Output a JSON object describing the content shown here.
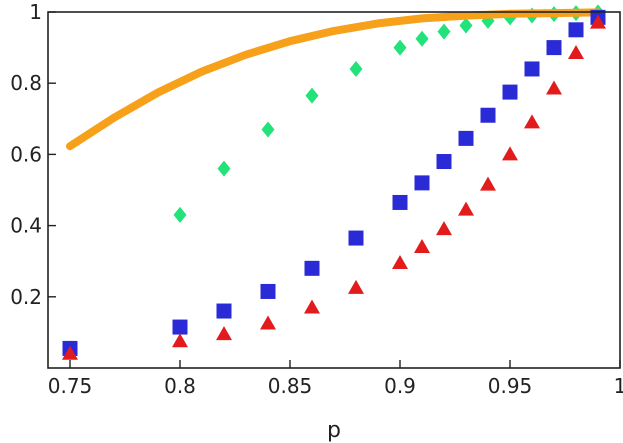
{
  "chart_data": {
    "type": "scatter",
    "title": "",
    "xlabel": "p",
    "ylabel": "",
    "xlim": [
      0.74,
      1.0
    ],
    "ylim": [
      0.0,
      1.0
    ],
    "grid": false,
    "legend": "none",
    "x_ticks": [
      {
        "value": 0.75,
        "label": "0.75"
      },
      {
        "value": 0.8,
        "label": "0.8"
      },
      {
        "value": 0.85,
        "label": "0.85"
      },
      {
        "value": 0.9,
        "label": "0.9"
      },
      {
        "value": 0.95,
        "label": "0.95"
      },
      {
        "value": 1.0,
        "label": "1"
      }
    ],
    "y_ticks": [
      {
        "value": 0.2,
        "label": "0.2"
      },
      {
        "value": 0.4,
        "label": "0.4"
      },
      {
        "value": 0.6,
        "label": "0.6"
      },
      {
        "value": 0.8,
        "label": "0.8"
      },
      {
        "value": 1.0,
        "label": "1"
      }
    ],
    "series": [
      {
        "mark": "line",
        "color": "#f7a11a",
        "x": [
          0.75,
          0.77,
          0.79,
          0.81,
          0.83,
          0.85,
          0.87,
          0.89,
          0.91,
          0.93,
          0.95,
          0.97,
          0.99
        ],
        "y": [
          0.623,
          0.703,
          0.774,
          0.833,
          0.88,
          0.918,
          0.947,
          0.968,
          0.982,
          0.99,
          0.995,
          0.997,
          0.999
        ]
      },
      {
        "mark": "diamond",
        "color": "#22e27a",
        "x": [
          0.75,
          0.8,
          0.82,
          0.84,
          0.86,
          0.88,
          0.9,
          0.91,
          0.92,
          0.93,
          0.94,
          0.95,
          0.96,
          0.97,
          0.98,
          0.99
        ],
        "y": [
          0.055,
          0.43,
          0.56,
          0.67,
          0.765,
          0.84,
          0.9,
          0.925,
          0.945,
          0.962,
          0.975,
          0.985,
          0.99,
          0.994,
          0.997,
          0.999
        ]
      },
      {
        "mark": "square",
        "color": "#2a2ad6",
        "x": [
          0.75,
          0.8,
          0.82,
          0.84,
          0.86,
          0.88,
          0.9,
          0.91,
          0.92,
          0.93,
          0.94,
          0.95,
          0.96,
          0.97,
          0.98,
          0.99
        ],
        "y": [
          0.055,
          0.115,
          0.16,
          0.215,
          0.28,
          0.365,
          0.465,
          0.52,
          0.58,
          0.645,
          0.71,
          0.775,
          0.84,
          0.9,
          0.95,
          0.985
        ]
      },
      {
        "mark": "triangle",
        "color": "#e21c1c",
        "x": [
          0.75,
          0.8,
          0.82,
          0.84,
          0.86,
          0.88,
          0.9,
          0.91,
          0.92,
          0.93,
          0.94,
          0.95,
          0.96,
          0.97,
          0.98,
          0.99
        ],
        "y": [
          0.04,
          0.075,
          0.095,
          0.125,
          0.17,
          0.225,
          0.295,
          0.34,
          0.39,
          0.445,
          0.515,
          0.6,
          0.69,
          0.785,
          0.885,
          0.97
        ]
      }
    ]
  }
}
